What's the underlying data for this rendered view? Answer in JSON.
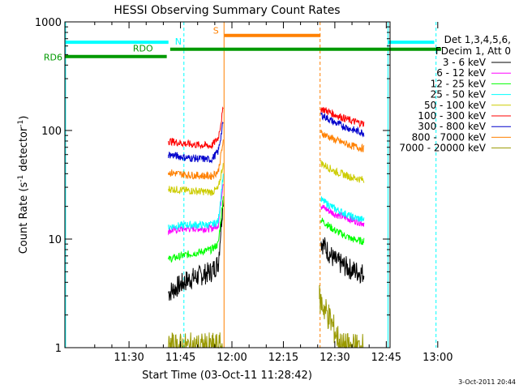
{
  "chart_data": {
    "type": "line",
    "title": "HESSI Observing Summary Count Rates",
    "xlabel": "Start Time (03-Oct-11 11:28:42)",
    "ylabel_main": "Count Rate (s",
    "ylabel_sup1": "-1",
    "ylabel_mid": " detector",
    "ylabel_sup2": "-1",
    "ylabel_end": ")",
    "yscale": "log",
    "ylim": [
      1,
      1000
    ],
    "xlim_minutes": [
      11.3,
      106.0
    ],
    "x_ticks": [
      {
        "minute": 30,
        "label": "11:30"
      },
      {
        "minute": 45,
        "label": "11:45"
      },
      {
        "minute": 60,
        "label": "12:00"
      },
      {
        "minute": 75,
        "label": "12:15"
      },
      {
        "minute": 90,
        "label": "12:30"
      },
      {
        "minute": 105,
        "label": "12:45"
      },
      {
        "minute": 120,
        "label": "13:00"
      }
    ],
    "y_ticks": [
      {
        "value": 1,
        "label": "1"
      },
      {
        "value": 10,
        "label": "10"
      },
      {
        "value": 100,
        "label": "100"
      },
      {
        "value": 1000,
        "label": "1000"
      }
    ],
    "legend_header": [
      "Det 1,3,4,5,6,",
      "FDecim 1, Att 0"
    ],
    "legend_placement": "right",
    "series": [
      {
        "name": "3 - 6 keV",
        "color": "#000000",
        "segments": [
          [
            [
              41.5,
              3.2
            ],
            [
              47,
              4.2
            ],
            [
              54,
              5.0
            ],
            [
              56,
              6.0
            ],
            [
              57.5,
              25
            ]
          ],
          [
            [
              86,
              9.5
            ],
            [
              90,
              6.3
            ],
            [
              95,
              5.2
            ],
            [
              98.5,
              4.8
            ]
          ]
        ]
      },
      {
        "name": "6 - 12 keV",
        "color": "#ff00ff",
        "segments": [
          [
            [
              41.5,
              12
            ],
            [
              47,
              12.5
            ],
            [
              54,
              12.5
            ],
            [
              56,
              13.5
            ],
            [
              57.5,
              35
            ]
          ],
          [
            [
              86,
              20
            ],
            [
              90,
              17
            ],
            [
              95,
              15
            ],
            [
              98.5,
              14
            ]
          ]
        ]
      },
      {
        "name": "12 - 25 keV",
        "color": "#00ff00",
        "segments": [
          [
            [
              41.5,
              6.5
            ],
            [
              47,
              7.2
            ],
            [
              54,
              8.0
            ],
            [
              56,
              9.0
            ],
            [
              57.5,
              25
            ]
          ],
          [
            [
              86,
              15
            ],
            [
              90,
              12
            ],
            [
              95,
              10
            ],
            [
              98.5,
              9.5
            ]
          ]
        ]
      },
      {
        "name": "25 - 50 keV",
        "color": "#00ffff",
        "segments": [
          [
            [
              41.5,
              13
            ],
            [
              47,
              13.5
            ],
            [
              54,
              13.5
            ],
            [
              56,
              14.5
            ],
            [
              57.5,
              40
            ]
          ],
          [
            [
              86,
              23
            ],
            [
              90,
              19
            ],
            [
              95,
              16
            ],
            [
              98.5,
              15
            ]
          ]
        ]
      },
      {
        "name": "50 - 100 keV",
        "color": "#cccc00",
        "segments": [
          [
            [
              41.5,
              29
            ],
            [
              47,
              28
            ],
            [
              54,
              27
            ],
            [
              56,
              29
            ],
            [
              57.5,
              50
            ]
          ],
          [
            [
              86,
              50
            ],
            [
              90,
              42
            ],
            [
              95,
              37
            ],
            [
              98.5,
              35
            ]
          ]
        ]
      },
      {
        "name": "100 - 300 keV",
        "color": "#ff0000",
        "segments": [
          [
            [
              41.5,
              80
            ],
            [
              47,
              75
            ],
            [
              54,
              72
            ],
            [
              56,
              85
            ],
            [
              57.5,
              160
            ]
          ],
          [
            [
              86,
              160
            ],
            [
              90,
              140
            ],
            [
              95,
              122
            ],
            [
              98.5,
              115
            ]
          ]
        ]
      },
      {
        "name": "300 - 800 keV",
        "color": "#0000cc",
        "segments": [
          [
            [
              41.5,
              60
            ],
            [
              47,
              56
            ],
            [
              54,
              54
            ],
            [
              56,
              64
            ],
            [
              57.5,
              120
            ]
          ],
          [
            [
              86,
              140
            ],
            [
              90,
              118
            ],
            [
              95,
              102
            ],
            [
              98.5,
              95
            ]
          ]
        ]
      },
      {
        "name": "800 - 7000 keV",
        "color": "#ff8000",
        "segments": [
          [
            [
              41.5,
              41
            ],
            [
              47,
              39
            ],
            [
              54,
              38
            ],
            [
              56,
              42
            ],
            [
              57.5,
              80
            ]
          ],
          [
            [
              86,
              95
            ],
            [
              90,
              82
            ],
            [
              95,
              72
            ],
            [
              98.5,
              68
            ]
          ]
        ]
      },
      {
        "name": "7000 - 20000 keV",
        "color": "#999900",
        "segments": [
          [
            [
              41.5,
              1.0
            ],
            [
              57.5,
              1.0
            ]
          ],
          [
            [
              85.5,
              2.8
            ],
            [
              88,
              2.0
            ],
            [
              92,
              1.0
            ],
            [
              98.5,
              1.0
            ]
          ]
        ]
      }
    ],
    "flags": [
      {
        "label": "N",
        "color": "#00ffff",
        "level": 650,
        "ranges": [
          [
            11.3,
            41.5
          ],
          [
            105.5,
            119
          ]
        ]
      },
      {
        "label": "S",
        "color": "#ff8000",
        "level": 750,
        "ranges": [
          [
            57.8,
            85.8
          ]
        ]
      },
      {
        "label": "RDO",
        "color": "#009900",
        "level": 560,
        "ranges": [
          [
            42,
            121
          ]
        ]
      },
      {
        "label": "RD6",
        "color": "#009900",
        "level": 480,
        "ranges": [
          [
            11.3,
            41
          ]
        ]
      }
    ],
    "vlines": [
      {
        "minute": 11.5,
        "color": "#00ffff",
        "dashed": false
      },
      {
        "minute": 46,
        "color": "#00ffff",
        "dashed": true
      },
      {
        "minute": 57.7,
        "color": "#ff8000",
        "dashed": false
      },
      {
        "minute": 85.7,
        "color": "#ff8000",
        "dashed": true
      },
      {
        "minute": 105.5,
        "color": "#00ffff",
        "dashed": false
      },
      {
        "minute": 119.5,
        "color": "#00ffff",
        "dashed": true
      }
    ]
  },
  "footer_date": "3-Oct-2011 20:44"
}
